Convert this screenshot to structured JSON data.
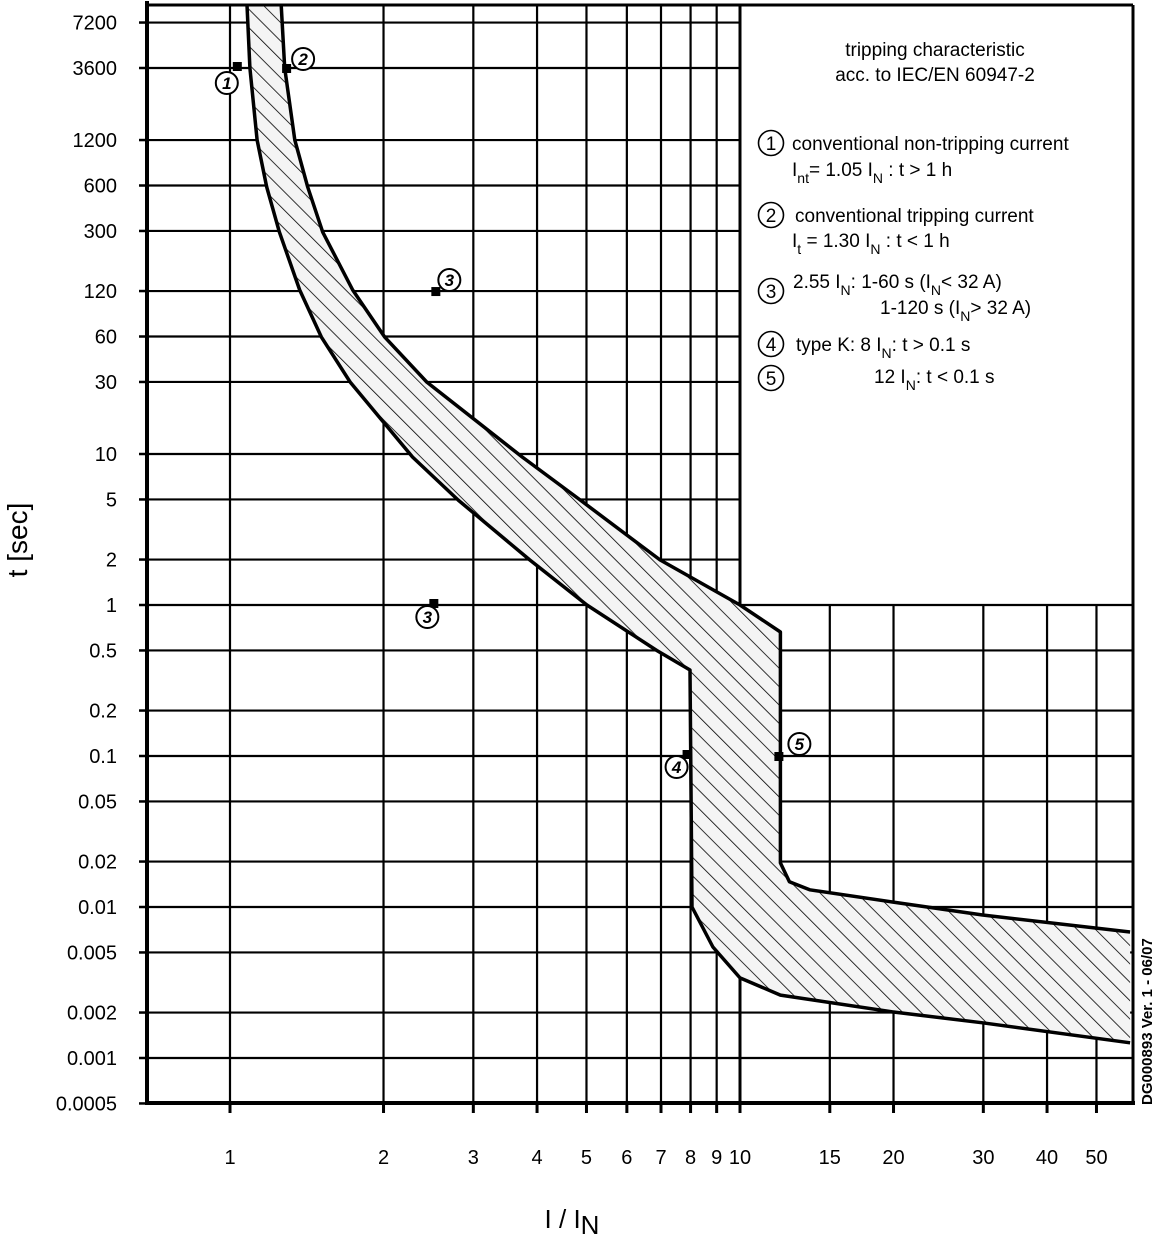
{
  "chart_data": {
    "type": "area",
    "title": "tripping characteristic",
    "subtitle": "acc. to IEC/EN 60947-2",
    "xlabel": "I / I",
    "xlabel_sub": "N",
    "ylabel": "t [sec]",
    "x_scale": "log",
    "y_scale": "log",
    "xlim": [
      0.687,
      59
    ],
    "ylim": [
      0.0005,
      9400
    ],
    "grid": true,
    "x_ticks": [
      1,
      2,
      3,
      4,
      5,
      6,
      7,
      8,
      9,
      10,
      15,
      20,
      30,
      40,
      50
    ],
    "x_tick_labels": [
      "1",
      "2",
      "3",
      "4",
      "5",
      "6",
      "7",
      "8",
      "9",
      "10",
      "15",
      "20",
      "30",
      "40",
      "50"
    ],
    "y_ticks": [
      7200,
      3600,
      1200,
      600,
      300,
      120,
      60,
      30,
      10,
      5,
      2,
      1,
      0.5,
      0.2,
      0.1,
      0.05,
      0.02,
      0.01,
      0.005,
      0.002,
      0.001,
      0.0005
    ],
    "y_tick_labels": [
      "7200",
      "3600",
      "1200",
      "600",
      "300",
      "120",
      "60",
      "30",
      "10",
      "5",
      "2",
      "1",
      "0.5",
      "0.2",
      "0.1",
      "0.05",
      "0.02",
      "0.01",
      "0.005",
      "0.002",
      "0.001",
      "0.0005"
    ],
    "band": {
      "fill": "hatched",
      "lower_boundary": [
        [
          1.08,
          9400
        ],
        [
          1.094,
          3600
        ],
        [
          1.13,
          1200
        ],
        [
          1.18,
          586
        ],
        [
          1.25,
          295
        ],
        [
          1.37,
          122
        ],
        [
          1.51,
          59.6
        ],
        [
          1.72,
          30
        ],
        [
          2.28,
          9.55
        ],
        [
          2.8,
          4.96
        ],
        [
          3.87,
          1.99
        ],
        [
          5.01,
          1
        ],
        [
          6.87,
          0.5
        ],
        [
          7.98,
          0.371
        ],
        [
          8.05,
          0.01
        ],
        [
          8.85,
          0.00543
        ],
        [
          10,
          0.00339
        ],
        [
          12.0,
          0.00261
        ],
        [
          19.9,
          0.00202
        ],
        [
          29.9,
          0.00171
        ],
        [
          58.2,
          0.00126
        ]
      ],
      "upper_boundary": [
        [
          1.26,
          9400
        ],
        [
          1.28,
          3600
        ],
        [
          1.34,
          1200
        ],
        [
          1.42,
          586
        ],
        [
          1.52,
          295
        ],
        [
          1.74,
          122
        ],
        [
          2.01,
          59.6
        ],
        [
          2.43,
          30
        ],
        [
          3.74,
          9.55
        ],
        [
          4.86,
          4.96
        ],
        [
          6.97,
          1.99
        ],
        [
          10,
          1
        ],
        [
          12.0,
          0.663
        ],
        [
          12.0,
          0.0196
        ],
        [
          12.5,
          0.0147
        ],
        [
          13.7,
          0.013
        ],
        [
          19.9,
          0.0108
        ],
        [
          29.9,
          0.00885
        ],
        [
          58.2,
          0.00683
        ]
      ]
    },
    "markers": [
      {
        "label": "1",
        "x": 1.05,
        "y": 3600
      },
      {
        "label": "2",
        "x": 1.3,
        "y": 3600
      },
      {
        "label": "3",
        "x": 2.55,
        "y": 120
      },
      {
        "label": "3",
        "x": 2.55,
        "y": 1
      },
      {
        "label": "4",
        "x": 8,
        "y": 0.1
      },
      {
        "label": "5",
        "x": 12,
        "y": 0.1
      }
    ],
    "legend": [
      {
        "number": "1",
        "lines": [
          [
            [
              "conventional non-tripping current",
              false
            ]
          ],
          [
            [
              "I",
              false
            ],
            [
              "nt",
              true
            ],
            [
              "= 1.05 I",
              false
            ],
            [
              "N",
              true
            ],
            [
              " : t > 1 h",
              false
            ]
          ]
        ]
      },
      {
        "number": "2",
        "lines": [
          [
            [
              "conventional tripping current",
              false
            ]
          ],
          [
            [
              "I",
              false
            ],
            [
              "t",
              true
            ],
            [
              " = 1.30 I",
              false
            ],
            [
              "N",
              true
            ],
            [
              " : t < 1 h",
              false
            ]
          ]
        ]
      },
      {
        "number": "3",
        "lines": [
          [
            [
              "2.55 I",
              false
            ],
            [
              "N",
              true
            ],
            [
              ":  1-60 s (I",
              false
            ],
            [
              "N",
              true
            ],
            [
              "< 32 A)",
              false
            ]
          ],
          [
            [
              "1-120 s (I",
              false
            ],
            [
              "N",
              true
            ],
            [
              "> 32 A)",
              false
            ]
          ]
        ]
      },
      {
        "number": "4",
        "lines": [
          [
            [
              "type K:   8 I",
              false
            ],
            [
              "N",
              true
            ],
            [
              ": t > 0.1 s",
              false
            ]
          ]
        ]
      },
      {
        "number": "5",
        "lines": [
          [
            [
              "12 I",
              false
            ],
            [
              "N",
              true
            ],
            [
              ": t < 0.1 s",
              false
            ]
          ]
        ]
      }
    ],
    "version_note": "DG000893 Ver. 1 - 06/07"
  }
}
